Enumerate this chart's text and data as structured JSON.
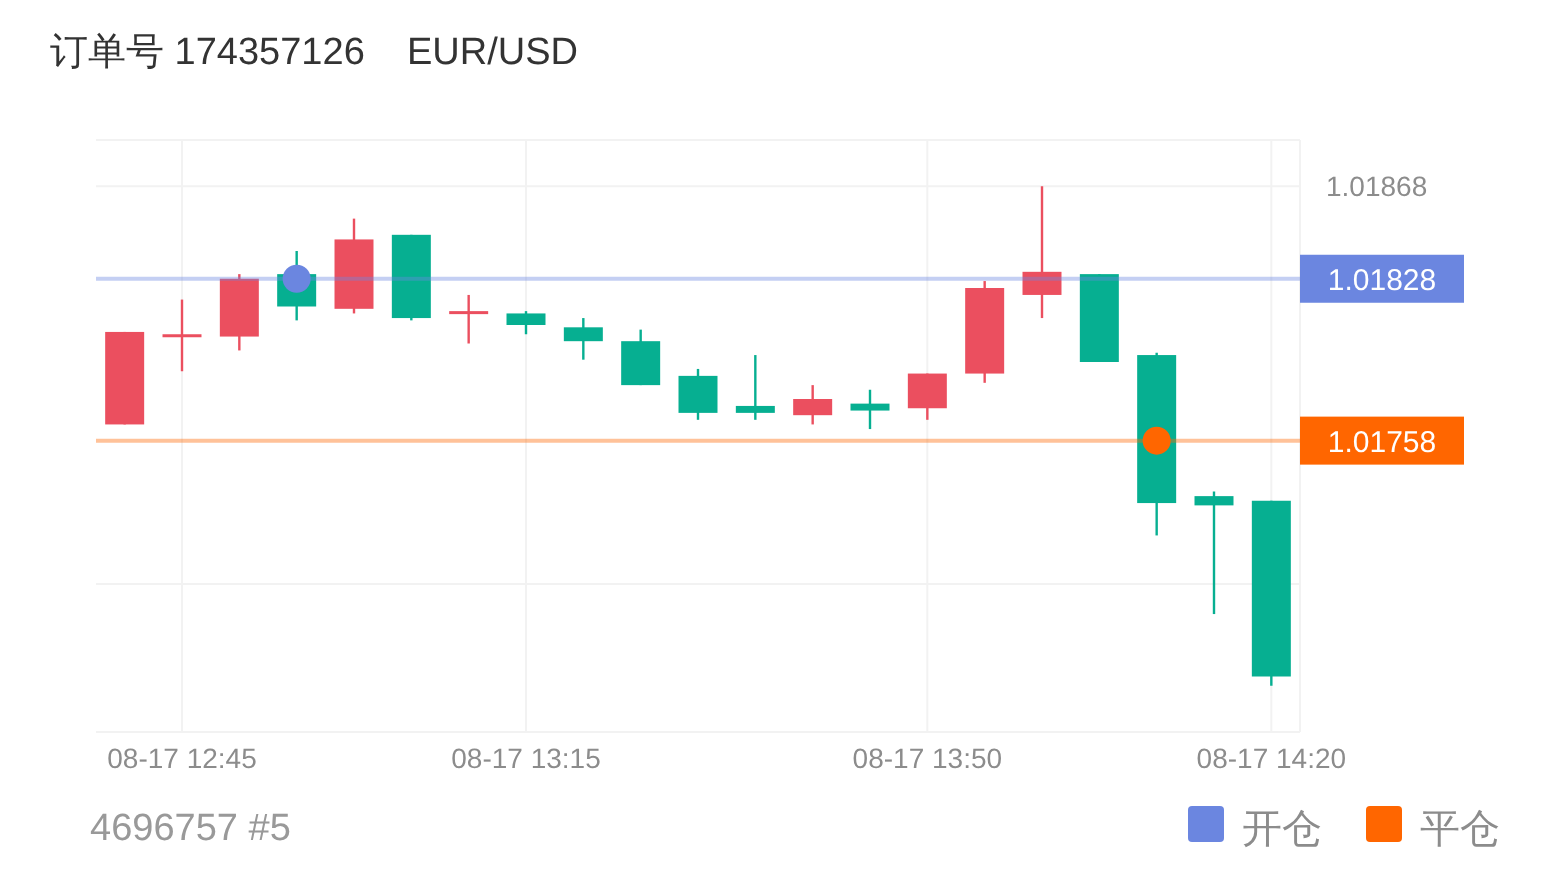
{
  "chart_data": {
    "type": "candlestick",
    "title": "订单号 174357126    EUR/USD",
    "categories": [
      null,
      "08-17 12:45",
      null,
      null,
      null,
      null,
      null,
      "08-17 13:15",
      null,
      null,
      null,
      null,
      null,
      null,
      "08-17 13:50",
      null,
      null,
      null,
      null,
      null,
      "08-17 14:20"
    ],
    "ohlc": [
      [
        1.01765,
        1.01805,
        1.01765,
        1.01805
      ],
      [
        1.01803,
        1.01819,
        1.01788,
        1.01804
      ],
      [
        1.01803,
        1.0183,
        1.01797,
        1.01828
      ],
      [
        1.0183,
        1.0184,
        1.0181,
        1.01816
      ],
      [
        1.01815,
        1.01854,
        1.01813,
        1.01845
      ],
      [
        1.01847,
        1.01847,
        1.0181,
        1.01811
      ],
      [
        1.01813,
        1.01821,
        1.018,
        1.01814
      ],
      [
        1.01813,
        1.01814,
        1.01804,
        1.01808
      ],
      [
        1.01807,
        1.01811,
        1.01793,
        1.01801
      ],
      [
        1.01801,
        1.01806,
        1.01782,
        1.01782
      ],
      [
        1.01786,
        1.01789,
        1.01767,
        1.0177
      ],
      [
        1.01773,
        1.01795,
        1.01767,
        1.0177
      ],
      [
        1.01769,
        1.01782,
        1.01765,
        1.01776
      ],
      [
        1.01774,
        1.0178,
        1.01763,
        1.01771
      ],
      [
        1.01772,
        1.01787,
        1.01767,
        1.01787
      ],
      [
        1.01787,
        1.01827,
        1.01783,
        1.01824
      ],
      [
        1.01821,
        1.01868,
        1.01811,
        1.01831
      ],
      [
        1.0183,
        1.0183,
        1.01792,
        1.01792
      ],
      [
        1.01795,
        1.01796,
        1.01717,
        1.01731
      ],
      [
        1.01734,
        1.01736,
        1.01683,
        1.0173
      ],
      [
        1.01732,
        1.01732,
        1.01652,
        1.01656
      ]
    ],
    "colors": [
      "#eb4f5f",
      "#eb4f5f",
      "#eb4f5f",
      "#06af91",
      "#eb4f5f",
      "#06af91",
      "#eb4f5f",
      "#06af91",
      "#06af91",
      "#06af91",
      "#06af91",
      "#06af91",
      "#eb4f5f",
      "#06af91",
      "#eb4f5f",
      "#eb4f5f",
      "#eb4f5f",
      "#06af91",
      "#06af91",
      "#06af91",
      "#06af91"
    ],
    "series": [
      {
        "name": "开仓",
        "type": "scatter",
        "color": "#6b86e0",
        "values": [
          null,
          null,
          null,
          1.01828,
          null,
          null,
          null,
          null,
          null,
          null,
          null,
          null,
          null,
          null,
          null,
          null,
          null,
          null,
          null,
          null,
          null
        ]
      },
      {
        "name": "平仓",
        "type": "scatter",
        "color": "#ff6600",
        "values": [
          null,
          null,
          null,
          null,
          null,
          null,
          null,
          null,
          null,
          null,
          null,
          null,
          null,
          null,
          null,
          null,
          null,
          null,
          1.01758,
          null,
          null
        ]
      }
    ],
    "marker": "circle",
    "ylim": [
      1.01632,
      1.01888
    ],
    "yticks": [
      1.01868,
      1.01828,
      1.01758,
      {
        "value": 1.01696,
        "label": null
      }
    ],
    "ref_lines": [
      {
        "axis": "y",
        "value": 1.01828,
        "color": "#6b86e0"
      },
      {
        "axis": "y",
        "value": 1.01758,
        "color": "#ff6600"
      }
    ],
    "grid": true,
    "legend": "bottom right",
    "annotations": [
      "4696757 #5"
    ]
  }
}
